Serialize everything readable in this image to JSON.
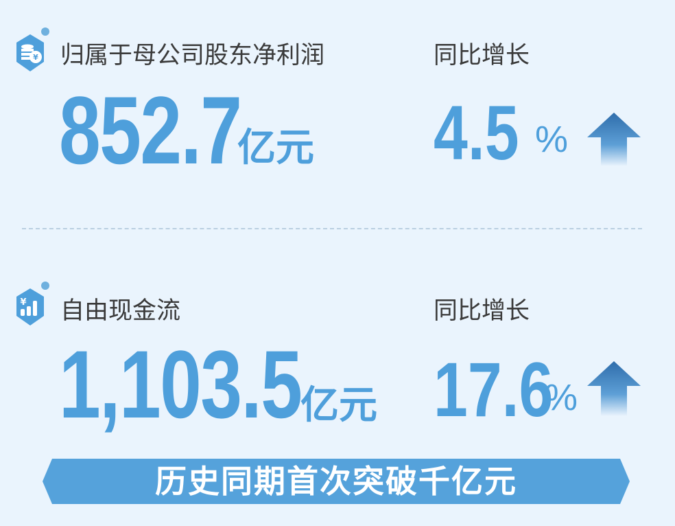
{
  "colors": {
    "accent": "#4e9fdb",
    "background": "#eaf4fd",
    "arrow_dark": "#2f6dab"
  },
  "metrics": [
    {
      "icon": "coins-yuan-icon",
      "label": "归属于母公司股东净利润",
      "value": "852.7",
      "unit": "亿元",
      "growth_label": "同比增长",
      "growth_value": "4.5",
      "growth_unit": "%",
      "trend": "up"
    },
    {
      "icon": "yuan-bar-chart-icon",
      "label": "自由现金流",
      "value": "1,103.5",
      "unit": "亿元",
      "growth_label": "同比增长",
      "growth_value": "17.6",
      "growth_unit": "%",
      "trend": "up"
    }
  ],
  "banner": {
    "text": "历史同期首次突破千亿元"
  }
}
